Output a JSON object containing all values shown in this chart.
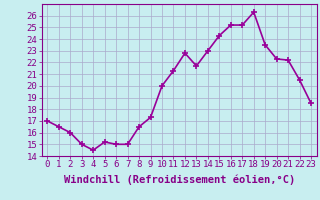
{
  "x": [
    0,
    1,
    2,
    3,
    4,
    5,
    6,
    7,
    8,
    9,
    10,
    11,
    12,
    13,
    14,
    15,
    16,
    17,
    18,
    19,
    20,
    21,
    22,
    23
  ],
  "y": [
    17.0,
    16.5,
    16.0,
    15.0,
    14.5,
    15.2,
    15.0,
    15.0,
    16.5,
    17.3,
    20.0,
    21.3,
    22.8,
    21.7,
    23.0,
    24.3,
    25.2,
    25.2,
    26.3,
    23.5,
    22.3,
    22.2,
    20.5,
    18.5
  ],
  "line_color": "#990099",
  "marker": "+",
  "marker_size": 5,
  "marker_lw": 1.2,
  "xlabel": "Windchill (Refroidissement éolien,°C)",
  "xlim": [
    -0.5,
    23.5
  ],
  "ylim": [
    14,
    27
  ],
  "yticks": [
    14,
    15,
    16,
    17,
    18,
    19,
    20,
    21,
    22,
    23,
    24,
    25,
    26
  ],
  "xticks": [
    0,
    1,
    2,
    3,
    4,
    5,
    6,
    7,
    8,
    9,
    10,
    11,
    12,
    13,
    14,
    15,
    16,
    17,
    18,
    19,
    20,
    21,
    22,
    23
  ],
  "background_color": "#c8eef0",
  "grid_color": "#aaaacc",
  "tick_fontsize": 6.5,
  "xlabel_fontsize": 7.5,
  "line_width": 1.2,
  "text_color": "#880088"
}
